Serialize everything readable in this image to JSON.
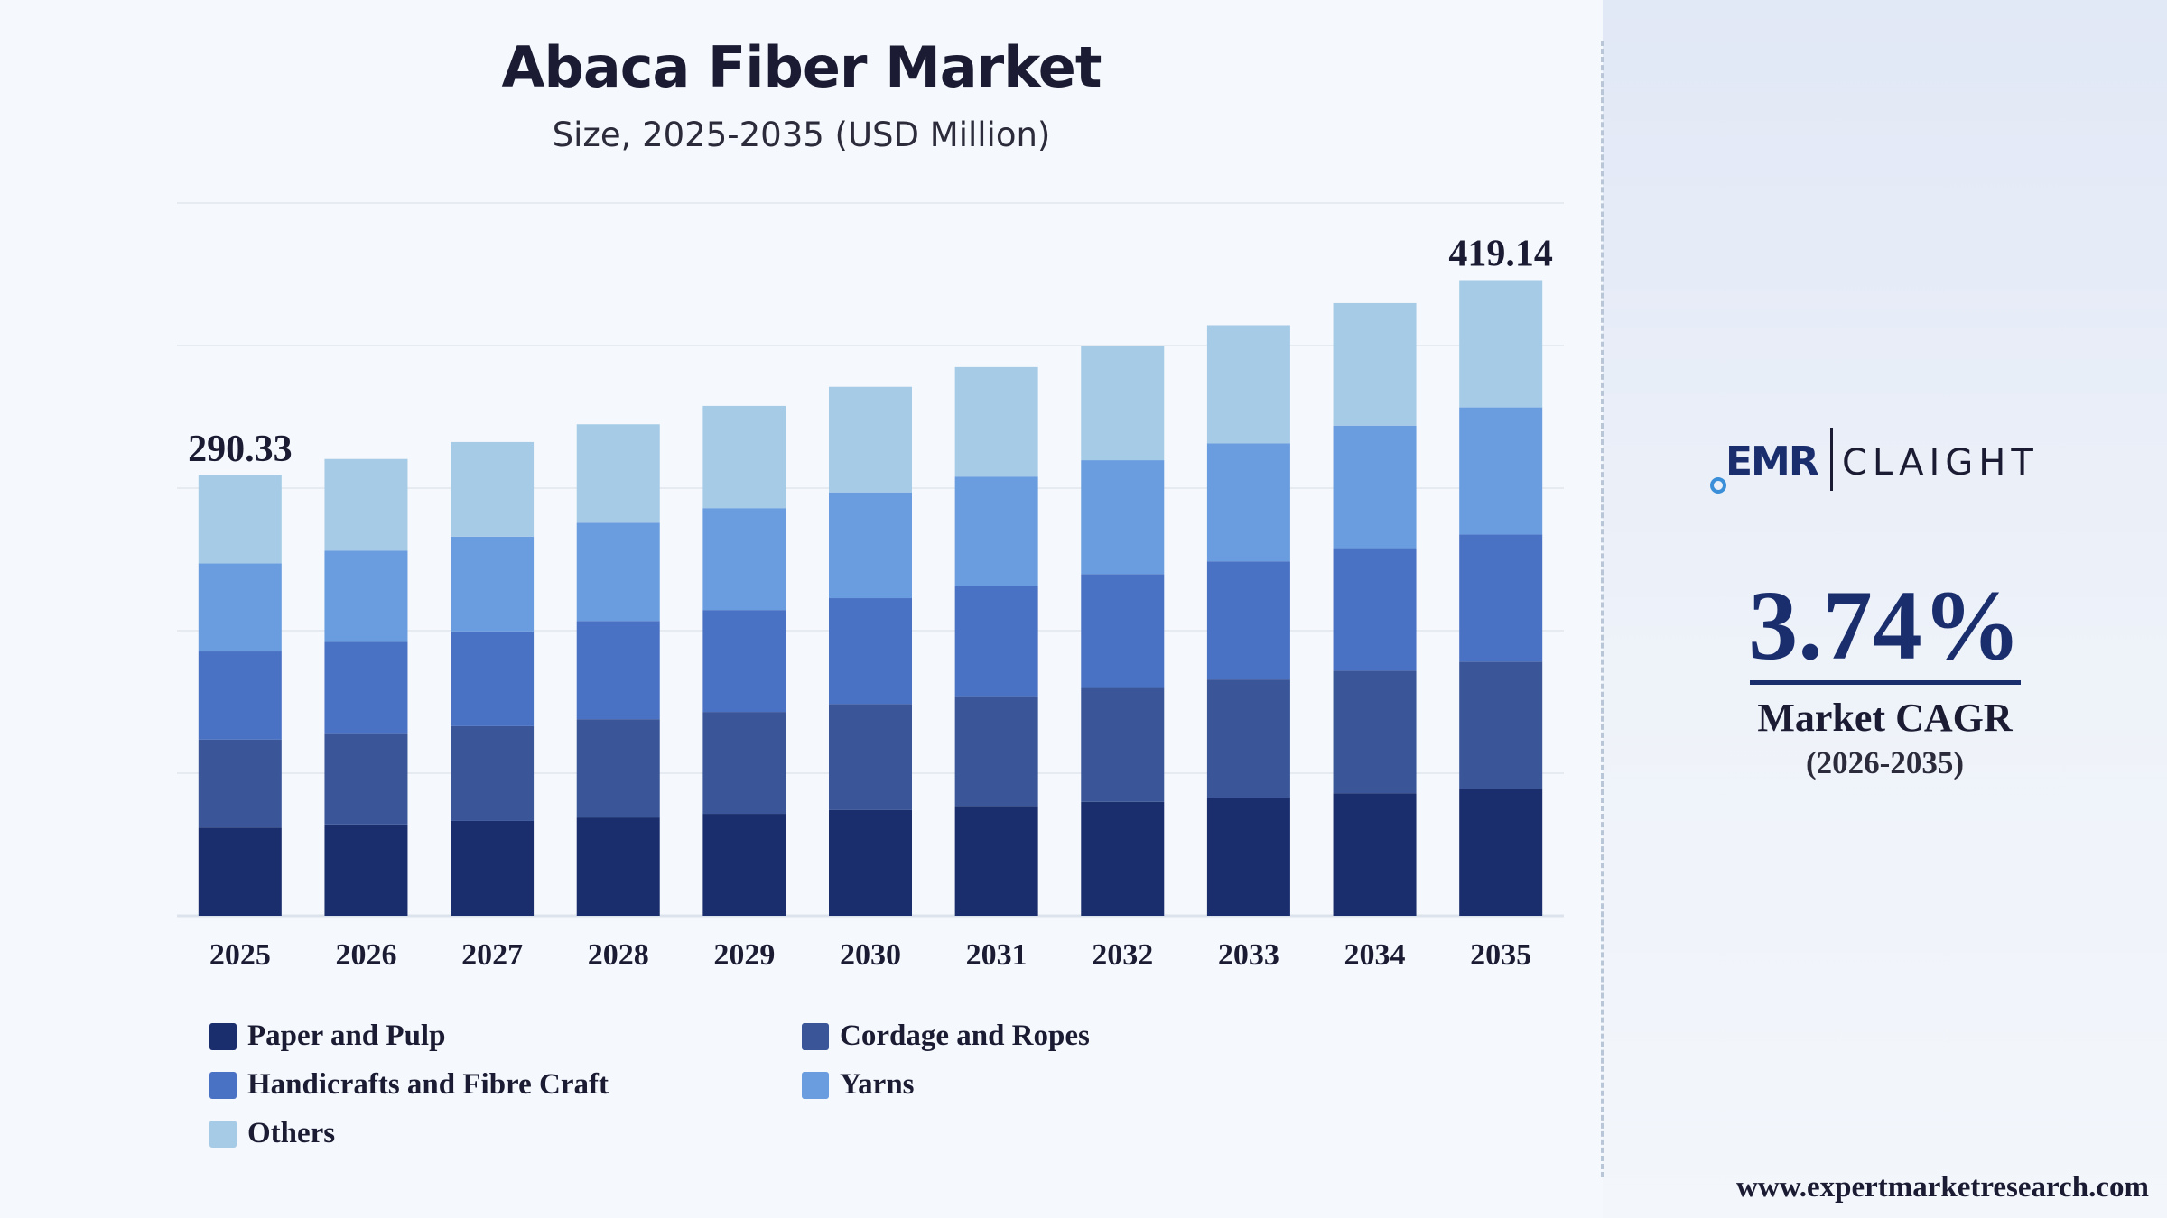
{
  "chart_data": {
    "type": "bar",
    "stacked": true,
    "title": "Abaca Fiber Market",
    "subtitle": "Size, 2025-2035 (USD Million)",
    "categories": [
      "2025",
      "2026",
      "2027",
      "2028",
      "2029",
      "2030",
      "2031",
      "2032",
      "2033",
      "2034",
      "2035"
    ],
    "totals": [
      290.33,
      301.2,
      312.4,
      324.1,
      336.2,
      348.8,
      361.8,
      375.4,
      389.4,
      404.0,
      419.14
    ],
    "series": [
      {
        "name": "Paper and Pulp",
        "color": "#1a2e6d",
        "values": [
          58.1,
          60.2,
          62.5,
          64.8,
          67.2,
          69.8,
          72.4,
          75.1,
          77.9,
          80.8,
          83.8
        ]
      },
      {
        "name": "Cordage and Ropes",
        "color": "#3a5699",
        "values": [
          58.1,
          60.2,
          62.5,
          64.8,
          67.2,
          69.8,
          72.4,
          75.1,
          77.9,
          80.8,
          83.8
        ]
      },
      {
        "name": "Handicrafts and Fibre Craft",
        "color": "#4a72c4",
        "values": [
          58.1,
          60.2,
          62.5,
          64.8,
          67.2,
          69.8,
          72.4,
          75.1,
          77.9,
          80.8,
          83.8
        ]
      },
      {
        "name": "Yarns",
        "color": "#6a9ddf",
        "values": [
          58.1,
          60.2,
          62.5,
          64.8,
          67.2,
          69.8,
          72.4,
          75.1,
          77.9,
          80.8,
          83.8
        ]
      },
      {
        "name": "Others",
        "color": "#a6cbe7",
        "values": [
          57.93,
          60.4,
          62.4,
          64.9,
          67.4,
          69.6,
          72.2,
          75.0,
          77.8,
          80.8,
          83.94
        ]
      }
    ],
    "data_labels": [
      {
        "category": "2025",
        "text": "290.33"
      },
      {
        "category": "2035",
        "text": "419.14"
      }
    ],
    "ylim": [
      0,
      470
    ],
    "grid": true,
    "legend_position": "bottom"
  },
  "brand": {
    "logo_left": "EMR",
    "logo_right": "CLAIGHT"
  },
  "cagr": {
    "value": "3.74%",
    "label": "Market CAGR",
    "period": "(2026-2035)"
  },
  "website": "www.expertmarketresearch.com"
}
